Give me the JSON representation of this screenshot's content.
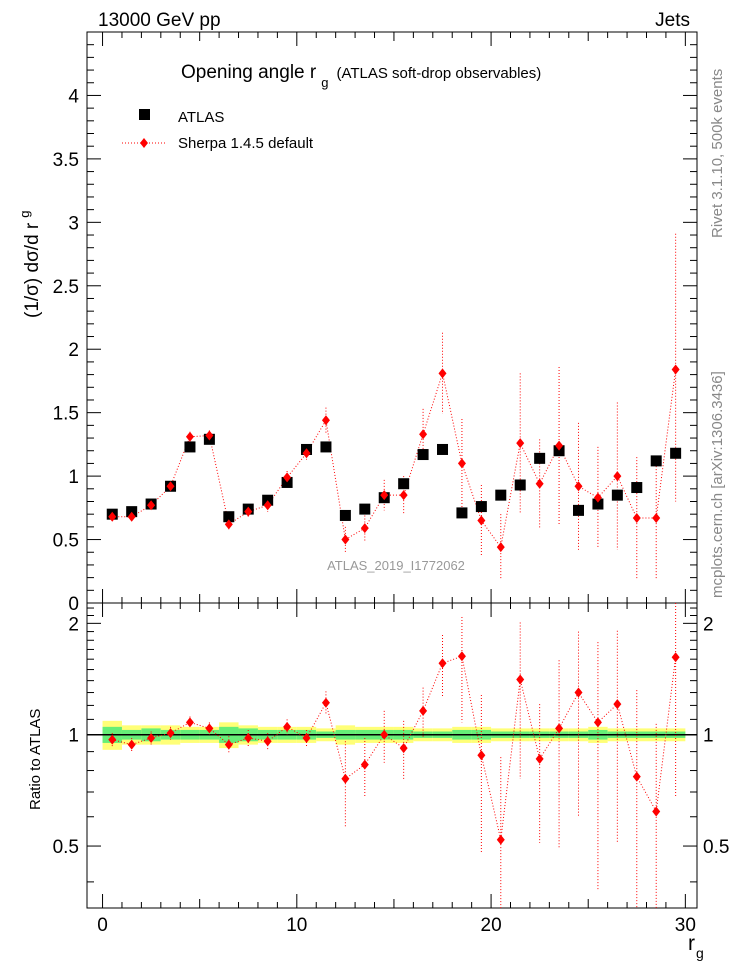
{
  "header": {
    "energy_label": "13000 GeV pp",
    "process_label": "Jets"
  },
  "side_text": {
    "rivet": "Rivet 3.1.10,  500k events",
    "mcplots": "mcplots.cern.ch [arXiv:1306.3436]"
  },
  "watermark": "ATLAS_2019_I1772062",
  "chart_data": [
    {
      "id": "main",
      "type": "scatter",
      "title": "Opening angle r",
      "title_sub": "g",
      "title_suffix": "(ATLAS soft-drop observables)",
      "ylabel": "(1/σ) dσ/d r",
      "ylabel_sub": "g",
      "xlim": [
        -0.8,
        30.6
      ],
      "ylim": [
        0,
        4.5
      ],
      "yticks": [
        0,
        0.5,
        1,
        1.5,
        2,
        2.5,
        3,
        3.5,
        4
      ],
      "ytick_labels": [
        "0",
        "0.5",
        "1",
        "1.5",
        "2",
        "2.5",
        "3",
        "3.5",
        "4"
      ],
      "legend": {
        "position": "top-left",
        "entries": [
          "ATLAS",
          "Sherpa 1.4.5 default"
        ]
      },
      "colors": {
        "data": "#000000",
        "mc": "#ff0000"
      },
      "x": [
        0.5,
        1.5,
        2.5,
        3.5,
        4.5,
        5.5,
        6.5,
        7.5,
        8.5,
        9.5,
        10.5,
        11.5,
        12.5,
        13.5,
        14.5,
        15.5,
        16.5,
        17.5,
        18.5,
        19.5,
        20.5,
        21.5,
        22.5,
        23.5,
        24.5,
        25.5,
        26.5,
        27.5,
        28.5,
        29.5
      ],
      "series": [
        {
          "name": "ATLAS",
          "style": "square",
          "values": [
            0.7,
            0.72,
            0.78,
            0.92,
            1.23,
            1.29,
            0.68,
            0.74,
            0.81,
            0.95,
            1.21,
            1.23,
            0.69,
            0.74,
            0.83,
            0.94,
            1.17,
            1.21,
            0.71,
            0.76,
            0.85,
            0.93,
            1.14,
            1.2,
            0.73,
            0.78,
            0.85,
            0.91,
            1.12,
            1.18
          ]
        },
        {
          "name": "Sherpa 1.4.5 default",
          "style": "diamond",
          "values": [
            0.68,
            0.68,
            0.77,
            0.92,
            1.31,
            1.32,
            0.62,
            0.72,
            0.77,
            0.99,
            1.18,
            1.44,
            0.5,
            0.59,
            0.85,
            0.85,
            1.33,
            1.81,
            1.1,
            0.65,
            0.44,
            1.26,
            0.94,
            1.24,
            0.92,
            0.83,
            1.0,
            0.67,
            0.67,
            1.84
          ],
          "err_lo": [
            0.03,
            0.03,
            0.03,
            0.03,
            0.04,
            0.04,
            0.04,
            0.04,
            0.05,
            0.05,
            0.05,
            0.1,
            0.1,
            0.1,
            0.12,
            0.15,
            0.2,
            0.32,
            0.35,
            0.28,
            0.26,
            0.55,
            0.35,
            0.62,
            0.5,
            0.4,
            0.58,
            0.48,
            0.48,
            1.04
          ],
          "err_hi": [
            0.03,
            0.03,
            0.03,
            0.03,
            0.04,
            0.04,
            0.04,
            0.04,
            0.05,
            0.05,
            0.05,
            0.1,
            0.1,
            0.1,
            0.12,
            0.15,
            0.2,
            0.32,
            0.35,
            0.28,
            0.26,
            0.55,
            0.35,
            0.62,
            0.5,
            0.4,
            0.58,
            0.48,
            0.48,
            1.07
          ]
        }
      ]
    },
    {
      "id": "ratio",
      "type": "scatter",
      "ylabel": "Ratio to ATLAS",
      "xlabel": "r",
      "xlabel_sub": "g",
      "xlim": [
        -0.8,
        30.6
      ],
      "ylim": [
        0.34,
        2.27
      ],
      "yticks": [
        0.5,
        1,
        2
      ],
      "ytick_labels": [
        "0.5",
        "1",
        "2"
      ],
      "xticks": [
        0,
        10,
        20,
        30
      ],
      "xtick_labels": [
        "0",
        "10",
        "20",
        "30"
      ],
      "band_inner": [
        0.05,
        0.03,
        0.04,
        0.03,
        0.03,
        0.03,
        0.05,
        0.04,
        0.03,
        0.03,
        0.03,
        0.02,
        0.03,
        0.03,
        0.03,
        0.03,
        0.02,
        0.02,
        0.03,
        0.03,
        0.02,
        0.02,
        0.02,
        0.02,
        0.02,
        0.03,
        0.02,
        0.02,
        0.02,
        0.02
      ],
      "band_outer": [
        0.09,
        0.06,
        0.06,
        0.06,
        0.05,
        0.05,
        0.08,
        0.06,
        0.05,
        0.05,
        0.05,
        0.04,
        0.06,
        0.05,
        0.05,
        0.05,
        0.04,
        0.04,
        0.05,
        0.05,
        0.04,
        0.04,
        0.04,
        0.04,
        0.04,
        0.05,
        0.04,
        0.04,
        0.04,
        0.04
      ],
      "series": [
        {
          "name": "Sherpa 1.4.5 default / ATLAS",
          "values": [
            0.97,
            0.94,
            0.98,
            1.01,
            1.08,
            1.04,
            0.94,
            0.98,
            0.96,
            1.05,
            0.98,
            1.22,
            0.76,
            0.83,
            1.0,
            0.92,
            1.16,
            1.56,
            1.63,
            0.88,
            0.52,
            1.41,
            0.86,
            1.04,
            1.3,
            1.08,
            1.21,
            0.77,
            0.62,
            1.62
          ],
          "err_lo": [
            0.04,
            0.04,
            0.04,
            0.04,
            0.04,
            0.04,
            0.05,
            0.05,
            0.05,
            0.05,
            0.05,
            0.09,
            0.2,
            0.15,
            0.16,
            0.17,
            0.18,
            0.3,
            0.55,
            0.4,
            0.35,
            0.65,
            0.35,
            0.55,
            0.7,
            0.7,
            0.7,
            0.52,
            0.42,
            0.94
          ],
          "err_hi": [
            0.04,
            0.04,
            0.04,
            0.04,
            0.04,
            0.04,
            0.05,
            0.05,
            0.05,
            0.05,
            0.05,
            0.09,
            0.2,
            0.15,
            0.16,
            0.17,
            0.18,
            0.3,
            0.45,
            0.4,
            0.35,
            0.6,
            0.35,
            0.55,
            0.6,
            0.7,
            0.7,
            0.55,
            0.45,
            0.8
          ]
        }
      ]
    }
  ]
}
